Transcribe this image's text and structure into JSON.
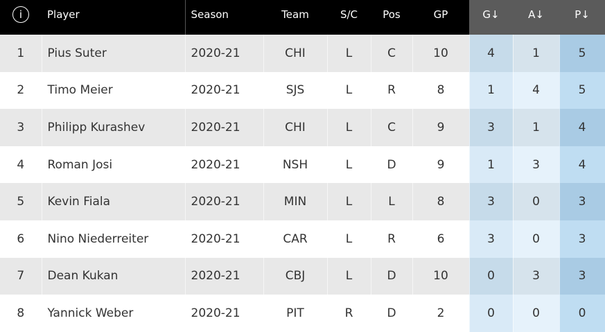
{
  "header": {
    "info_icon": "i",
    "columns": [
      "Player",
      "Season",
      "Team",
      "S/C",
      "Pos",
      "GP",
      "G↓",
      "A↓",
      "P↓"
    ]
  },
  "table": {
    "rows": [
      [
        1,
        "Pius Suter",
        "2020-21",
        "CHI",
        "L",
        "C",
        10,
        4,
        1,
        5
      ],
      [
        2,
        "Timo Meier",
        "2020-21",
        "SJS",
        "L",
        "R",
        8,
        1,
        4,
        5
      ],
      [
        3,
        "Philipp Kurashev",
        "2020-21",
        "CHI",
        "L",
        "C",
        9,
        3,
        1,
        4
      ],
      [
        4,
        "Roman Josi",
        "2020-21",
        "NSH",
        "L",
        "D",
        9,
        1,
        3,
        4
      ],
      [
        5,
        "Kevin Fiala",
        "2020-21",
        "MIN",
        "L",
        "L",
        8,
        3,
        0,
        3
      ],
      [
        6,
        "Nino Niederreiter",
        "2020-21",
        "CAR",
        "L",
        "R",
        6,
        3,
        0,
        3
      ],
      [
        7,
        "Dean Kukan",
        "2020-21",
        "CBJ",
        "L",
        "D",
        10,
        0,
        3,
        3
      ],
      [
        8,
        "Yannick Weber",
        "2020-21",
        "PIT",
        "R",
        "D",
        2,
        0,
        0,
        0
      ]
    ]
  }
}
